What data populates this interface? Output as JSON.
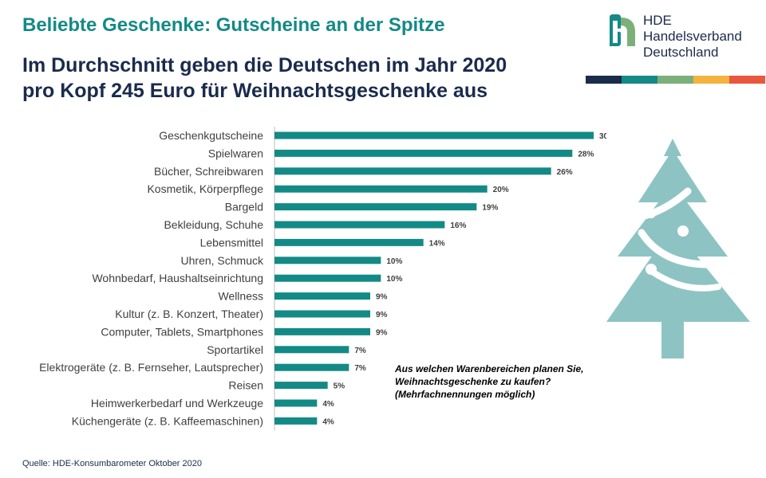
{
  "title": "Beliebte Geschenke: Gutscheine an der Spitze",
  "subtitle_line1": "Im Durchschnitt geben die Deutschen im Jahr 2020",
  "subtitle_line2": "pro Kopf 245 Euro für Weihnachtsgeschenke aus",
  "logo": {
    "line1": "HDE",
    "line2": "Handelsverband",
    "line3": "Deutschland",
    "stripe_colors": [
      "#1a2b4c",
      "#138a86",
      "#7cb07a",
      "#f4b33d",
      "#e9573f"
    ]
  },
  "question_line1": "Aus welchen Warenbereichen planen Sie,",
  "question_line2": "Weihnachtsgeschenke  zu kaufen?",
  "question_line3": "(Mehrfachnennungen  möglich)",
  "source": "Quelle: HDE-Konsumbarometer Oktober 2020",
  "colors": {
    "bar": "#138a86",
    "tree": "#8dc4c3",
    "title": "#138a86",
    "navy": "#1a2b4c"
  },
  "icons": {
    "tree": "christmas-tree-icon",
    "logo": "hde-logo-icon"
  },
  "chart_data": {
    "type": "bar",
    "orientation": "horizontal",
    "categories": [
      "Geschenkgutscheine",
      "Spielwaren",
      "Bücher, Schreibwaren",
      "Kosmetik, Körperpflege",
      "Bargeld",
      "Bekleidung, Schuhe",
      "Lebensmittel",
      "Uhren, Schmuck",
      "Wohnbedarf, Haushaltseinrichtung",
      "Wellness",
      "Kultur (z. B. Konzert, Theater)",
      "Computer, Tablets, Smartphones",
      "Sportartikel",
      "Elektrogeräte (z. B. Fernseher, Lautsprecher)",
      "Reisen",
      "Heimwerkerbedarf und Werkzeuge",
      "Küchengeräte (z. B. Kaffeemaschinen)"
    ],
    "values": [
      30,
      28,
      26,
      20,
      19,
      16,
      14,
      10,
      10,
      9,
      9,
      9,
      7,
      7,
      5,
      4,
      4
    ],
    "value_suffix": "%",
    "xlim": [
      0,
      30
    ],
    "grid": false,
    "legend": "none"
  }
}
